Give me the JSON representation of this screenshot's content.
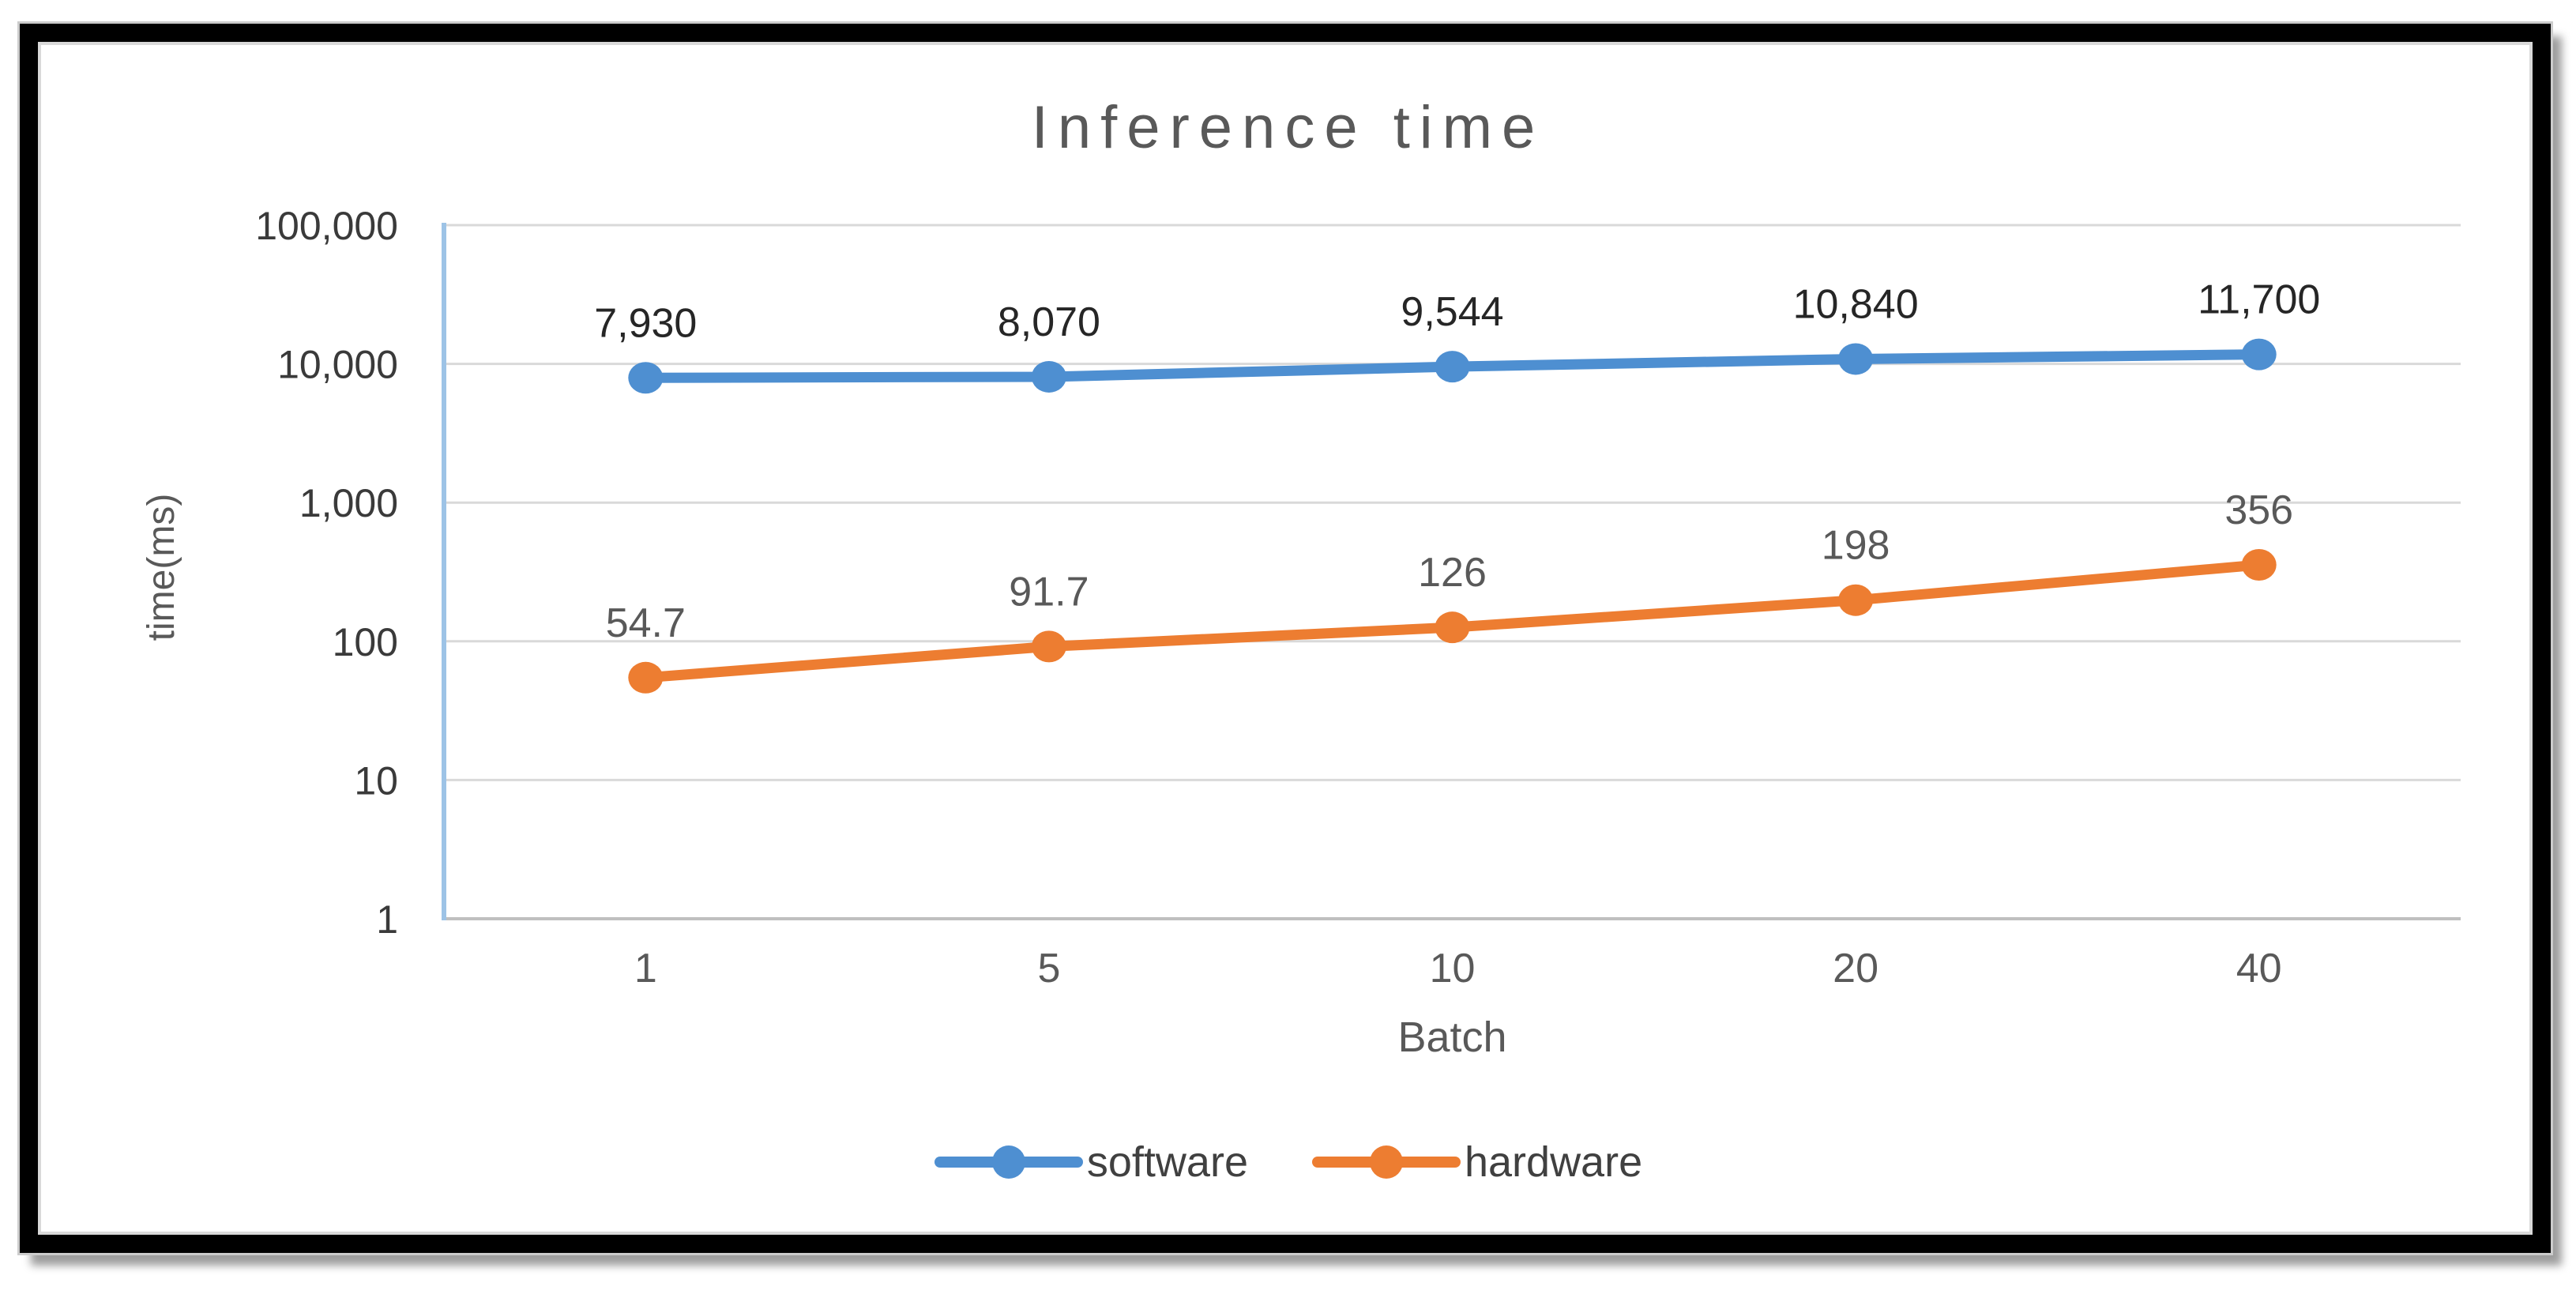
{
  "chart_data": {
    "type": "line",
    "title": "Inference time",
    "xlabel": "Batch",
    "ylabel": "time(ms)",
    "x_categories": [
      "1",
      "5",
      "10",
      "20",
      "40"
    ],
    "y_scale": "log10",
    "ylim": [
      1,
      100000
    ],
    "ytick_labels": [
      "100,000",
      "10,000",
      "1,000",
      "100",
      "10",
      "1"
    ],
    "grid": "horizontal",
    "legend_position": "bottom",
    "series": [
      {
        "name": "software",
        "color": "#4E8FD1",
        "label_color": "#262626",
        "values": [
          7930,
          8070,
          9544,
          10840,
          11700
        ],
        "labels": [
          "7,930",
          "8,070",
          "9,544",
          "10,840",
          "11,700"
        ]
      },
      {
        "name": "hardware",
        "color": "#ED7D31",
        "label_color": "#595959",
        "values": [
          54.7,
          91.7,
          126,
          198,
          356
        ],
        "labels": [
          "54.7",
          "91.7",
          "126",
          "198",
          "356"
        ]
      }
    ],
    "axis_colors": {
      "y_axis_line": "#9DC3E6",
      "x_axis_line": "#BFBFBF",
      "gridline": "#D9D9D9"
    },
    "text_colors": {
      "title": "#595959",
      "y_ticks": "#3A3A3A",
      "x_ticks": "#595959",
      "axis_titles": "#595959",
      "legend": "#404040"
    }
  }
}
